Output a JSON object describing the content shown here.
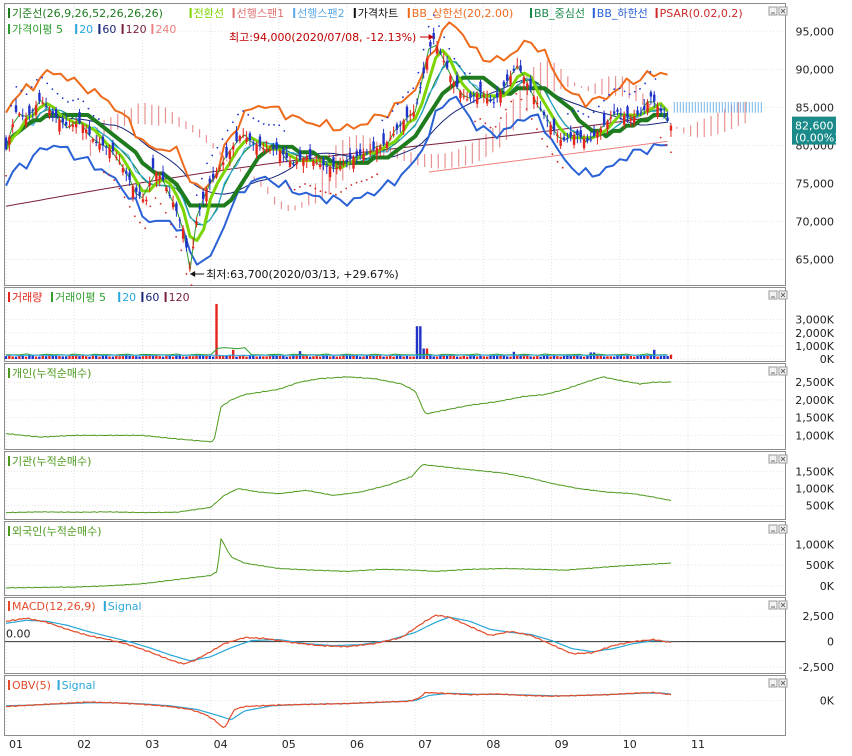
{
  "colors": {
    "kijun": "#1e7b1e",
    "tenkan": "#7cd400",
    "span1": "#e07070",
    "span2": "#5aa9e6",
    "candle_up": "#e3251d",
    "candle_down": "#1f33c9",
    "bb_upper": "#ee6b1c",
    "bb_mid": "#1a8a4a",
    "bb_lower": "#2a62d6",
    "psar": "#cc2a2a",
    "ma5": "#2f9e2f",
    "ma20": "#29a8e0",
    "ma60": "#16257a",
    "ma120": "#7a1f3c",
    "ma240": "#f08080",
    "cumulative": "#4e9a1e",
    "macd": "#e34b2a",
    "signal": "#2aa6d6",
    "obv": "#e34b2a",
    "current_price_box": "#1a8a8a"
  },
  "legends": {
    "price": [
      {
        "text": "기준선(26,9,26,52,26,26,26)",
        "color": "#1e7b1e",
        "icon": "bar-marker"
      },
      {
        "text": "전환선",
        "color": "#7cd400",
        "icon": "bar-marker"
      },
      {
        "text": "선행스팬1",
        "color": "#e07070",
        "icon": "bar-marker"
      },
      {
        "text": "선행스팬2",
        "color": "#5aa9e6",
        "icon": "bar-marker"
      },
      {
        "text": "가격차트",
        "color": "#111111",
        "icon": "bar-marker"
      },
      {
        "text": "BB_상한선(20,2.00)",
        "color": "#ee6b1c",
        "icon": "bar-marker"
      },
      {
        "text": "BB_중심선",
        "color": "#1a8a4a",
        "icon": "bar-marker"
      },
      {
        "text": "BB_하한선",
        "color": "#2a62d6",
        "icon": "bar-marker"
      },
      {
        "text": "PSAR(0.02,0.2)",
        "color": "#cc2a2a",
        "icon": "bar-marker"
      }
    ],
    "price_ma": [
      {
        "text": "가격이평 5",
        "color": "#2f9e2f",
        "icon": "bar-marker"
      },
      {
        "text": "20",
        "color": "#29a8e0",
        "icon": "bar-marker"
      },
      {
        "text": "60",
        "color": "#16257a",
        "icon": "bar-marker"
      },
      {
        "text": "120",
        "color": "#7a1f3c",
        "icon": "bar-marker"
      },
      {
        "text": "240",
        "color": "#f08080",
        "icon": "bar-marker"
      }
    ],
    "volume": [
      {
        "text": "거래량",
        "color": "#e3251d",
        "icon": "bar-marker"
      },
      {
        "text": "거래이평 5",
        "color": "#2f9e2f",
        "icon": "bar-marker"
      },
      {
        "text": "20",
        "color": "#29a8e0",
        "icon": "bar-marker"
      },
      {
        "text": "60",
        "color": "#16257a",
        "icon": "bar-marker"
      },
      {
        "text": "120",
        "color": "#7a1f3c",
        "icon": "bar-marker"
      }
    ],
    "individual": [
      {
        "text": "개인(누적순매수)",
        "color": "#4e9a1e",
        "icon": "bar-marker"
      }
    ],
    "institution": [
      {
        "text": "기관(누적순매수)",
        "color": "#4e9a1e",
        "icon": "bar-marker"
      }
    ],
    "foreign": [
      {
        "text": "외국인(누적순매수)",
        "color": "#4e9a1e",
        "icon": "bar-marker"
      }
    ],
    "macd": [
      {
        "text": "MACD(12,26,9)",
        "color": "#e34b2a",
        "icon": "bar-marker"
      },
      {
        "text": "Signal",
        "color": "#2aa6d6",
        "icon": "bar-marker"
      }
    ],
    "obv": [
      {
        "text": "OBV(5)",
        "color": "#e34b2a",
        "icon": "bar-marker"
      },
      {
        "text": "Signal",
        "color": "#2aa6d6",
        "icon": "bar-marker"
      }
    ]
  },
  "annotations": {
    "high": "최고:94,000(2020/07/08, -12.13%)",
    "low": "최저:63,700(2020/03/13, +29.67%)",
    "macd_zero": "0.00"
  },
  "current_price": {
    "value": "82,600",
    "change": "(0.00%)"
  },
  "pane_buttons": [
    "minimize-icon",
    "close-icon"
  ],
  "chart_data": {
    "type": "candlestick",
    "x_labels": [
      "01",
      "02",
      "03",
      "04",
      "05",
      "06",
      "07",
      "08",
      "09",
      "10",
      "11"
    ],
    "months": 10.5,
    "price": {
      "yticks": [
        "95,000",
        "90,000",
        "85,000",
        "80,000",
        "75,000",
        "70,000",
        "65,000"
      ],
      "tick_values": [
        95000,
        90000,
        85000,
        80000,
        75000,
        70000,
        65000
      ],
      "ylim": [
        62300,
        97800
      ],
      "close_path": [
        [
          0,
          79500
        ],
        [
          0.15,
          84500
        ],
        [
          0.3,
          83500
        ],
        [
          0.5,
          86000
        ],
        [
          0.7,
          84000
        ],
        [
          0.9,
          82500
        ],
        [
          1.1,
          83000
        ],
        [
          1.3,
          80500
        ],
        [
          1.55,
          79500
        ],
        [
          1.75,
          76500
        ],
        [
          1.9,
          74000
        ],
        [
          2.05,
          72500
        ],
        [
          2.15,
          77000
        ],
        [
          2.3,
          75500
        ],
        [
          2.45,
          72500
        ],
        [
          2.6,
          69000
        ],
        [
          2.7,
          63700
        ],
        [
          2.8,
          70500
        ],
        [
          2.95,
          74500
        ],
        [
          3.1,
          76500
        ],
        [
          3.3,
          79500
        ],
        [
          3.45,
          81500
        ],
        [
          3.6,
          80500
        ],
        [
          3.8,
          79500
        ],
        [
          4.0,
          79500
        ],
        [
          4.2,
          77500
        ],
        [
          4.4,
          78500
        ],
        [
          4.6,
          77500
        ],
        [
          4.85,
          77000
        ],
        [
          5.1,
          78500
        ],
        [
          5.3,
          79000
        ],
        [
          5.6,
          80500
        ],
        [
          5.85,
          83500
        ],
        [
          6.0,
          84500
        ],
        [
          6.1,
          88500
        ],
        [
          6.2,
          92500
        ],
        [
          6.27,
          94000
        ],
        [
          6.4,
          91500
        ],
        [
          6.55,
          88500
        ],
        [
          6.75,
          86000
        ],
        [
          6.95,
          87000
        ],
        [
          7.15,
          85500
        ],
        [
          7.35,
          88500
        ],
        [
          7.5,
          90500
        ],
        [
          7.65,
          88000
        ],
        [
          7.85,
          84500
        ],
        [
          8.0,
          82500
        ],
        [
          8.15,
          80500
        ],
        [
          8.35,
          81500
        ],
        [
          8.55,
          80500
        ],
        [
          8.75,
          82500
        ],
        [
          8.95,
          84500
        ],
        [
          9.15,
          83500
        ],
        [
          9.35,
          84500
        ],
        [
          9.45,
          86500
        ],
        [
          9.6,
          84500
        ],
        [
          9.75,
          82600
        ]
      ],
      "high": {
        "value": 94000,
        "date": "2020/07/08"
      },
      "low": {
        "value": 63700,
        "date": "2020/03/13"
      },
      "current": 82600
    },
    "volume": {
      "yticks": [
        "3,000K",
        "2,000K",
        "1,000K",
        "0K"
      ],
      "tick_values": [
        3000,
        2000,
        1000,
        0
      ],
      "ylim": [
        0,
        4500
      ],
      "unit": "K",
      "spikes": [
        [
          3.1,
          4200
        ],
        [
          3.35,
          700
        ],
        [
          4.3,
          600
        ],
        [
          5.1,
          350
        ],
        [
          6.05,
          2500
        ],
        [
          6.15,
          800
        ],
        [
          7.45,
          550
        ],
        [
          8.6,
          500
        ],
        [
          9.5,
          700
        ]
      ]
    },
    "individual": {
      "yticks": [
        "2,500K",
        "2,000K",
        "1,500K",
        "1,000K"
      ],
      "tick_values": [
        2500,
        2000,
        1500,
        1000
      ],
      "ylim": [
        700,
        2900
      ],
      "points": [
        [
          0,
          1050
        ],
        [
          0.5,
          950
        ],
        [
          1.0,
          1000
        ],
        [
          1.5,
          1000
        ],
        [
          2.0,
          1000
        ],
        [
          2.5,
          900
        ],
        [
          3.0,
          820
        ],
        [
          3.05,
          850
        ],
        [
          3.15,
          1800
        ],
        [
          3.3,
          2000
        ],
        [
          3.5,
          2150
        ],
        [
          4.0,
          2300
        ],
        [
          4.3,
          2500
        ],
        [
          4.6,
          2600
        ],
        [
          5.0,
          2650
        ],
        [
          5.4,
          2600
        ],
        [
          5.8,
          2450
        ],
        [
          6.0,
          2250
        ],
        [
          6.15,
          1600
        ],
        [
          6.4,
          1700
        ],
        [
          6.8,
          1850
        ],
        [
          7.2,
          1950
        ],
        [
          7.6,
          2100
        ],
        [
          7.9,
          2150
        ],
        [
          8.2,
          2300
        ],
        [
          8.5,
          2500
        ],
        [
          8.75,
          2650
        ],
        [
          9.0,
          2550
        ],
        [
          9.3,
          2450
        ],
        [
          9.5,
          2500
        ],
        [
          9.75,
          2500
        ]
      ]
    },
    "institution": {
      "yticks": [
        "1,500K",
        "1,000K",
        "500K"
      ],
      "tick_values": [
        1500,
        1000,
        500
      ],
      "ylim": [
        200,
        1950
      ],
      "points": [
        [
          0,
          300
        ],
        [
          0.5,
          320
        ],
        [
          1.0,
          310
        ],
        [
          1.5,
          320
        ],
        [
          2.0,
          300
        ],
        [
          2.5,
          310
        ],
        [
          3.0,
          450
        ],
        [
          3.2,
          800
        ],
        [
          3.4,
          1000
        ],
        [
          3.7,
          900
        ],
        [
          4.0,
          850
        ],
        [
          4.4,
          950
        ],
        [
          4.8,
          800
        ],
        [
          5.2,
          900
        ],
        [
          5.6,
          1100
        ],
        [
          5.95,
          1350
        ],
        [
          6.1,
          1700
        ],
        [
          6.35,
          1650
        ],
        [
          6.8,
          1550
        ],
        [
          7.3,
          1450
        ],
        [
          7.7,
          1300
        ],
        [
          8.0,
          1150
        ],
        [
          8.4,
          1000
        ],
        [
          8.8,
          900
        ],
        [
          9.2,
          850
        ],
        [
          9.5,
          750
        ],
        [
          9.75,
          650
        ]
      ]
    },
    "foreign": {
      "yticks": [
        "1,000K",
        "500K",
        "0K"
      ],
      "tick_values": [
        1000,
        500,
        0
      ],
      "ylim": [
        -150,
        1450
      ],
      "points": [
        [
          0,
          -50
        ],
        [
          0.5,
          -40
        ],
        [
          1.0,
          -30
        ],
        [
          1.5,
          0
        ],
        [
          2.0,
          50
        ],
        [
          2.5,
          150
        ],
        [
          3.0,
          250
        ],
        [
          3.1,
          350
        ],
        [
          3.15,
          1150
        ],
        [
          3.3,
          700
        ],
        [
          3.5,
          550
        ],
        [
          4.0,
          420
        ],
        [
          4.5,
          380
        ],
        [
          5.0,
          350
        ],
        [
          5.5,
          400
        ],
        [
          6.0,
          380
        ],
        [
          6.3,
          350
        ],
        [
          6.8,
          400
        ],
        [
          7.3,
          420
        ],
        [
          7.8,
          400
        ],
        [
          8.2,
          380
        ],
        [
          8.6,
          430
        ],
        [
          9.0,
          480
        ],
        [
          9.4,
          520
        ],
        [
          9.75,
          550
        ]
      ]
    },
    "macd": {
      "yticks": [
        "2,500",
        "0",
        "-2,500"
      ],
      "tick_values": [
        2500,
        0,
        -2500
      ],
      "ylim": [
        -2900,
        3900
      ],
      "points": [
        [
          0,
          2000
        ],
        [
          0.3,
          2300
        ],
        [
          0.6,
          1900
        ],
        [
          0.9,
          1200
        ],
        [
          1.2,
          600
        ],
        [
          1.5,
          200
        ],
        [
          1.8,
          -300
        ],
        [
          2.1,
          -1000
        ],
        [
          2.4,
          -1800
        ],
        [
          2.6,
          -2200
        ],
        [
          2.75,
          -1900
        ],
        [
          3.0,
          -1000
        ],
        [
          3.2,
          -200
        ],
        [
          3.5,
          400
        ],
        [
          3.8,
          300
        ],
        [
          4.2,
          -100
        ],
        [
          4.6,
          -400
        ],
        [
          5.0,
          -500
        ],
        [
          5.4,
          -200
        ],
        [
          5.8,
          400
        ],
        [
          6.1,
          1800
        ],
        [
          6.3,
          2600
        ],
        [
          6.5,
          2400
        ],
        [
          6.8,
          1500
        ],
        [
          7.1,
          600
        ],
        [
          7.4,
          1000
        ],
        [
          7.7,
          600
        ],
        [
          8.0,
          -300
        ],
        [
          8.3,
          -1200
        ],
        [
          8.6,
          -1100
        ],
        [
          8.9,
          -400
        ],
        [
          9.2,
          0
        ],
        [
          9.5,
          200
        ],
        [
          9.75,
          -100
        ]
      ],
      "signal_points": [
        [
          0,
          1800
        ],
        [
          0.3,
          2100
        ],
        [
          0.6,
          2000
        ],
        [
          0.9,
          1600
        ],
        [
          1.2,
          1000
        ],
        [
          1.5,
          500
        ],
        [
          1.8,
          0
        ],
        [
          2.1,
          -600
        ],
        [
          2.4,
          -1300
        ],
        [
          2.7,
          -1900
        ],
        [
          3.0,
          -1500
        ],
        [
          3.3,
          -600
        ],
        [
          3.6,
          100
        ],
        [
          4.0,
          200
        ],
        [
          4.4,
          -200
        ],
        [
          4.8,
          -400
        ],
        [
          5.2,
          -300
        ],
        [
          5.6,
          100
        ],
        [
          6.0,
          900
        ],
        [
          6.3,
          1900
        ],
        [
          6.5,
          2400
        ],
        [
          6.8,
          2000
        ],
        [
          7.1,
          1200
        ],
        [
          7.4,
          900
        ],
        [
          7.7,
          700
        ],
        [
          8.0,
          100
        ],
        [
          8.3,
          -700
        ],
        [
          8.6,
          -1000
        ],
        [
          8.9,
          -700
        ],
        [
          9.2,
          -200
        ],
        [
          9.5,
          100
        ],
        [
          9.75,
          0
        ]
      ]
    },
    "obv": {
      "yticks": [
        "0K"
      ],
      "tick_values": [
        0
      ],
      "ylim": [
        -2200,
        1400
      ],
      "points": [
        [
          0,
          -400
        ],
        [
          0.4,
          -300
        ],
        [
          0.8,
          -200
        ],
        [
          1.2,
          -100
        ],
        [
          1.6,
          -150
        ],
        [
          2.0,
          -250
        ],
        [
          2.4,
          -400
        ],
        [
          2.7,
          -600
        ],
        [
          2.9,
          -900
        ],
        [
          3.05,
          -1300
        ],
        [
          3.2,
          -1900
        ],
        [
          3.35,
          -600
        ],
        [
          3.5,
          -400
        ],
        [
          4.0,
          -300
        ],
        [
          4.5,
          -250
        ],
        [
          5.0,
          -200
        ],
        [
          5.5,
          -100
        ],
        [
          5.9,
          -50
        ],
        [
          6.05,
          150
        ],
        [
          6.15,
          550
        ],
        [
          6.4,
          500
        ],
        [
          6.8,
          400
        ],
        [
          7.2,
          450
        ],
        [
          7.6,
          350
        ],
        [
          8.0,
          300
        ],
        [
          8.4,
          350
        ],
        [
          8.8,
          400
        ],
        [
          9.2,
          500
        ],
        [
          9.5,
          550
        ],
        [
          9.75,
          400
        ]
      ],
      "signal_points": [
        [
          0,
          -350
        ],
        [
          0.4,
          -300
        ],
        [
          0.8,
          -220
        ],
        [
          1.2,
          -150
        ],
        [
          1.6,
          -150
        ],
        [
          2.0,
          -220
        ],
        [
          2.4,
          -350
        ],
        [
          2.8,
          -600
        ],
        [
          3.1,
          -1000
        ],
        [
          3.3,
          -1300
        ],
        [
          3.5,
          -700
        ],
        [
          3.9,
          -350
        ],
        [
          4.4,
          -250
        ],
        [
          5.0,
          -200
        ],
        [
          5.5,
          -120
        ],
        [
          6.0,
          0
        ],
        [
          6.2,
          350
        ],
        [
          6.5,
          500
        ],
        [
          6.9,
          430
        ],
        [
          7.3,
          420
        ],
        [
          7.7,
          370
        ],
        [
          8.1,
          320
        ],
        [
          8.5,
          360
        ],
        [
          8.9,
          420
        ],
        [
          9.3,
          500
        ],
        [
          9.6,
          520
        ],
        [
          9.75,
          450
        ]
      ]
    }
  }
}
